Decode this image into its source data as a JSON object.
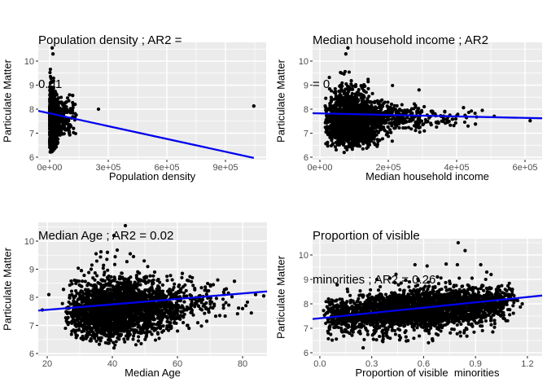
{
  "figure": {
    "background": "#ffffff",
    "description": "2x2 grid of scatter plots of Particulate Matter vs census predictors with linear fits"
  },
  "styles": {
    "panel_bg": "#EBEBEB",
    "grid_color": "#FFFFFF",
    "point_color": "#000000",
    "line_color": "#0000EE",
    "tick_mark_color": "#333333",
    "tick_label_color": "#4D4D4D",
    "text_color": "#000000"
  },
  "chart_data": [
    {
      "type": "scatter",
      "title_lines": [
        "Population density ; AR2 =",
        "0.01"
      ],
      "title": "Population density ; AR2 = 0.01",
      "xlabel": "Population density",
      "ylabel": "Particulate Matter",
      "xlim": [
        -58333,
        1108333
      ],
      "ylim": [
        5.898,
        10.78
      ],
      "xticks": [
        {
          "v": 0,
          "label": "0e+00"
        },
        {
          "v": 300000,
          "label": "3e+05"
        },
        {
          "v": 600000,
          "label": "6e+05"
        },
        {
          "v": 900000,
          "label": "9e+05"
        }
      ],
      "yticks": [
        {
          "v": 6,
          "label": "6"
        },
        {
          "v": 7,
          "label": "7"
        },
        {
          "v": 8,
          "label": "8"
        },
        {
          "v": 9,
          "label": "9"
        },
        {
          "v": 10,
          "label": "10"
        }
      ],
      "xminor": [
        150000,
        450000,
        750000,
        1050000
      ],
      "yminor": [
        6.5,
        7.5,
        8.5,
        9.5,
        10.5
      ],
      "regression": {
        "x1": -58333,
        "y1": 7.93,
        "x2": 1045000,
        "y2": 5.97
      },
      "seed": 101,
      "cloud": [
        {
          "n": 1150,
          "x": {
            "dist": "halfnorm",
            "mu": 0,
            "sigma": 20000,
            "min": 0,
            "max": 70000
          },
          "y": {
            "dist": "norm",
            "mu": 7.5,
            "sigma": 0.55,
            "min": 6.35,
            "max": 9.68
          }
        },
        {
          "n": 230,
          "x": {
            "dist": "halfnorm",
            "mu": 0,
            "sigma": 40000,
            "min": 0,
            "max": 130000
          },
          "y": {
            "dist": "norm",
            "mu": 7.65,
            "sigma": 0.38,
            "min": 6.8,
            "max": 8.75
          }
        },
        {
          "n": 140,
          "x": {
            "dist": "halfnorm",
            "mu": 0,
            "sigma": 11000,
            "min": 0,
            "max": 38000
          },
          "y": {
            "dist": "norm",
            "mu": 7.55,
            "sigma": 1.05,
            "min": 6.2,
            "max": 9.7
          }
        },
        {
          "n": 60,
          "x": {
            "dist": "norm",
            "mu": 85000,
            "sigma": 30000,
            "min": 45000,
            "max": 140000
          },
          "y": {
            "dist": "norm",
            "mu": 7.7,
            "sigma": 0.45,
            "min": 6.9,
            "max": 8.65
          }
        }
      ],
      "outliers": [
        [
          13000,
          10.55
        ],
        [
          17000,
          10.3
        ],
        [
          250000,
          8.0
        ],
        [
          1045000,
          8.13
        ],
        [
          118000,
          8.57
        ],
        [
          98000,
          8.35
        ],
        [
          130000,
          8.2
        ],
        [
          122000,
          7.2
        ],
        [
          103000,
          6.93
        ],
        [
          86000,
          8.3
        ],
        [
          9000,
          6.22
        ],
        [
          20000,
          6.3
        ]
      ]
    },
    {
      "type": "scatter",
      "title_lines": [
        "Median household income ; AR2",
        "= 0"
      ],
      "title": "Median household income ; AR2 = 0",
      "xlabel": "Median household income",
      "ylabel": "Particulate Matter",
      "xlim": [
        -21429,
        650000
      ],
      "ylim": [
        5.898,
        10.78
      ],
      "xticks": [
        {
          "v": 0,
          "label": "0e+00"
        },
        {
          "v": 200000,
          "label": "2e+05"
        },
        {
          "v": 400000,
          "label": "4e+05"
        },
        {
          "v": 600000,
          "label": "6e+05"
        }
      ],
      "yticks": [
        {
          "v": 6,
          "label": "6"
        },
        {
          "v": 7,
          "label": "7"
        },
        {
          "v": 8,
          "label": "8"
        },
        {
          "v": 9,
          "label": "9"
        },
        {
          "v": 10,
          "label": "10"
        }
      ],
      "xminor": [
        100000,
        300000,
        500000
      ],
      "yminor": [
        6.5,
        7.5,
        8.5,
        9.5,
        10.5
      ],
      "regression": {
        "x1": -21429,
        "y1": 7.83,
        "x2": 650000,
        "y2": 7.62
      },
      "seed": 202,
      "cloud": [
        {
          "n": 1500,
          "x": {
            "dist": "norm",
            "mu": 95000,
            "sigma": 42000,
            "min": 15000,
            "max": 215000
          },
          "y": {
            "dist": "norm",
            "mu": 7.5,
            "sigma": 0.5,
            "min": 6.45,
            "max": 9.0
          }
        },
        {
          "n": 350,
          "x": {
            "dist": "norm",
            "mu": 85000,
            "sigma": 30000,
            "min": 25000,
            "max": 170000
          },
          "y": {
            "dist": "norm",
            "mu": 7.6,
            "sigma": 0.8,
            "min": 6.3,
            "max": 9.65
          }
        },
        {
          "n": 230,
          "x": {
            "dist": "norm",
            "mu": 215000,
            "sigma": 55000,
            "min": 150000,
            "max": 380000
          },
          "y": {
            "dist": "norm",
            "mu": 7.65,
            "sigma": 0.3,
            "min": 6.95,
            "max": 8.35
          }
        },
        {
          "n": 60,
          "x": {
            "dist": "norm",
            "mu": 330000,
            "sigma": 80000,
            "min": 230000,
            "max": 470000
          },
          "y": {
            "dist": "norm",
            "mu": 7.6,
            "sigma": 0.2,
            "min": 7.2,
            "max": 8.1
          }
        }
      ],
      "outliers": [
        [
          82000,
          10.55
        ],
        [
          76000,
          10.3
        ],
        [
          290000,
          8.8
        ],
        [
          615000,
          7.52
        ],
        [
          475000,
          7.95
        ],
        [
          420000,
          8.06
        ],
        [
          455000,
          7.38
        ],
        [
          392000,
          7.32
        ],
        [
          362000,
          7.6
        ],
        [
          340000,
          7.45
        ],
        [
          71000,
          6.2
        ],
        [
          305000,
          8.1
        ],
        [
          330000,
          7.9
        ],
        [
          282000,
          7.25
        ],
        [
          510000,
          7.7
        ]
      ]
    },
    {
      "type": "scatter",
      "title_lines": [
        "Median Age ; AR2 = 0.02"
      ],
      "title": "Median Age ; AR2 = 0.02",
      "xlabel": "Median Age",
      "ylabel": "Particulate Matter",
      "xlim": [
        17.25,
        87.5
      ],
      "ylim": [
        5.913,
        10.667
      ],
      "xticks": [
        {
          "v": 20,
          "label": "20"
        },
        {
          "v": 40,
          "label": "40"
        },
        {
          "v": 60,
          "label": "60"
        },
        {
          "v": 80,
          "label": "80"
        }
      ],
      "yticks": [
        {
          "v": 6,
          "label": "6"
        },
        {
          "v": 7,
          "label": "7"
        },
        {
          "v": 8,
          "label": "8"
        },
        {
          "v": 9,
          "label": "9"
        },
        {
          "v": 10,
          "label": "10"
        }
      ],
      "xminor": [
        30,
        50,
        70
      ],
      "yminor": [
        6.5,
        7.5,
        8.5,
        9.5,
        10.5
      ],
      "regression": {
        "x1": 17.25,
        "y1": 7.53,
        "x2": 87.5,
        "y2": 8.21
      },
      "seed": 303,
      "cloud": [
        {
          "n": 1900,
          "x": {
            "dist": "norm",
            "mu": 42,
            "sigma": 8.5,
            "min": 25.5,
            "max": 66
          },
          "y": {
            "dist": "norm",
            "mu": 7.55,
            "sigma": 0.47,
            "min": 6.45,
            "max": 8.95,
            "slope": 0.009,
            "xref": 42
          }
        },
        {
          "n": 420,
          "x": {
            "dist": "norm",
            "mu": 40,
            "sigma": 6.5,
            "min": 28,
            "max": 58
          },
          "y": {
            "dist": "norm",
            "mu": 7.55,
            "sigma": 0.78,
            "min": 6.3,
            "max": 9.55,
            "slope": 0.009,
            "xref": 42
          }
        },
        {
          "n": 220,
          "x": {
            "dist": "norm",
            "mu": 61,
            "sigma": 9,
            "min": 48,
            "max": 84
          },
          "y": {
            "dist": "norm",
            "mu": 7.8,
            "sigma": 0.38,
            "min": 6.95,
            "max": 8.75
          }
        },
        {
          "n": 60,
          "x": {
            "dist": "norm",
            "mu": 30,
            "sigma": 3.5,
            "min": 24.5,
            "max": 40
          },
          "y": {
            "dist": "norm",
            "mu": 7.6,
            "sigma": 0.5,
            "min": 6.6,
            "max": 8.6
          }
        }
      ],
      "outliers": [
        [
          44,
          10.55
        ],
        [
          40.5,
          10.2
        ],
        [
          36.5,
          9.62
        ],
        [
          38.5,
          9.6
        ],
        [
          41.5,
          9.68
        ],
        [
          45.5,
          9.55
        ],
        [
          46.5,
          9.45
        ],
        [
          35,
          9.55
        ],
        [
          33.5,
          9.0
        ],
        [
          30.5,
          8.95
        ],
        [
          53,
          8.9
        ],
        [
          61.5,
          8.85
        ],
        [
          77.5,
          8.57
        ],
        [
          84,
          8.1
        ],
        [
          86.5,
          8.05
        ],
        [
          18.5,
          7.55
        ],
        [
          20.5,
          8.1
        ],
        [
          25,
          8.28
        ],
        [
          40.5,
          6.2
        ],
        [
          36,
          6.33
        ],
        [
          31,
          6.5
        ],
        [
          48,
          6.45
        ],
        [
          54,
          6.7
        ],
        [
          58,
          6.9
        ],
        [
          63,
          7.0
        ],
        [
          69,
          7.15
        ],
        [
          73,
          7.35
        ],
        [
          80,
          7.6
        ],
        [
          71,
          8.45
        ],
        [
          75,
          8.3
        ]
      ]
    },
    {
      "type": "scatter",
      "title_lines": [
        "Proportion of visible",
        "minorities ; AR2 = 0.26"
      ],
      "title": "Proportion of visible minorities ; AR2 = 0.26",
      "xlabel": "Proportion of visible  minorities",
      "ylabel": "Particulate Matter",
      "xlim": [
        -0.042,
        1.285
      ],
      "ylim": [
        5.867,
        10.667
      ],
      "xticks": [
        {
          "v": 0.0,
          "label": "0.0"
        },
        {
          "v": 0.3,
          "label": "0.3"
        },
        {
          "v": 0.6,
          "label": "0.6"
        },
        {
          "v": 0.9,
          "label": "0.9"
        },
        {
          "v": 1.2,
          "label": "1.2"
        }
      ],
      "yticks": [
        {
          "v": 6,
          "label": "6"
        },
        {
          "v": 7,
          "label": "7"
        },
        {
          "v": 8,
          "label": "8"
        },
        {
          "v": 9,
          "label": "9"
        },
        {
          "v": 10,
          "label": "10"
        }
      ],
      "xminor": [
        0.15,
        0.45,
        0.75,
        1.05
      ],
      "yminor": [
        6.5,
        7.5,
        8.5,
        9.5,
        10.5
      ],
      "regression": {
        "x1": -0.042,
        "y1": 7.38,
        "x2": 1.285,
        "y2": 8.34
      },
      "seed": 404,
      "cloud": [
        {
          "n": 2100,
          "x": {
            "dist": "norm",
            "mu": 0.52,
            "sigma": 0.27,
            "min": 0.04,
            "max": 1.1
          },
          "y": {
            "dist": "norm",
            "mu": 7.42,
            "sigma": 0.37,
            "min": 6.55,
            "max": 8.9,
            "slope": 0.6,
            "xref": 0
          }
        },
        {
          "n": 480,
          "x": {
            "dist": "norm",
            "mu": 0.55,
            "sigma": 0.25,
            "min": 0.06,
            "max": 1.08
          },
          "y": {
            "dist": "norm",
            "mu": 7.45,
            "sigma": 0.55,
            "min": 6.4,
            "max": 9.25,
            "slope": 0.6,
            "xref": 0
          }
        },
        {
          "n": 260,
          "x": {
            "dist": "norm",
            "mu": 0.97,
            "sigma": 0.1,
            "min": 0.8,
            "max": 1.16
          },
          "y": {
            "dist": "norm",
            "mu": 7.5,
            "sigma": 0.35,
            "min": 6.8,
            "max": 8.85,
            "slope": 0.55,
            "xref": 0
          }
        },
        {
          "n": 70,
          "x": {
            "dist": "norm",
            "mu": 0.12,
            "sigma": 0.06,
            "min": 0.02,
            "max": 0.26
          },
          "y": {
            "dist": "norm",
            "mu": 7.55,
            "sigma": 0.32,
            "min": 6.95,
            "max": 8.35
          }
        }
      ],
      "outliers": [
        [
          0.8,
          10.5
        ],
        [
          0.84,
          10.18
        ],
        [
          0.55,
          9.6
        ],
        [
          0.62,
          9.55
        ],
        [
          0.73,
          9.63
        ],
        [
          0.795,
          9.6
        ],
        [
          0.93,
          9.6
        ],
        [
          0.965,
          9.3
        ],
        [
          0.99,
          9.2
        ],
        [
          0.33,
          9.0
        ],
        [
          0.405,
          9.05
        ],
        [
          0.25,
          6.2
        ],
        [
          0.1,
          8.78
        ],
        [
          0.05,
          8.2
        ],
        [
          0.035,
          7.6
        ],
        [
          1.1,
          8.6
        ],
        [
          1.13,
          8.2
        ],
        [
          1.17,
          8.0
        ],
        [
          0.31,
          6.55
        ],
        [
          0.5,
          6.48
        ],
        [
          0.65,
          6.55
        ],
        [
          0.85,
          6.68
        ],
        [
          1.0,
          6.85
        ],
        [
          0.57,
          8.95
        ],
        [
          0.47,
          8.85
        ],
        [
          0.68,
          9.1
        ],
        [
          0.88,
          9.05
        ]
      ]
    }
  ]
}
